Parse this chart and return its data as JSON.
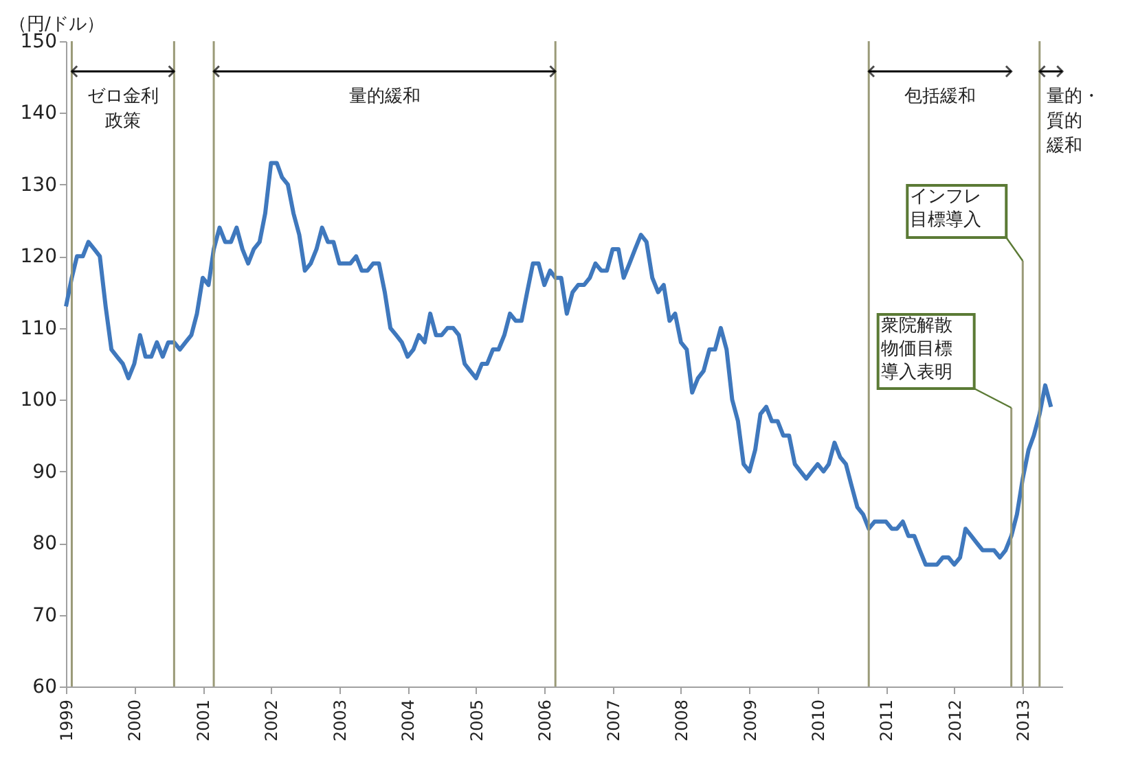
{
  "chart_data": {
    "type": "line",
    "ylabel": "（円/ドル）",
    "x": [
      "1999-01",
      "1999-02",
      "1999-03",
      "1999-04",
      "1999-05",
      "1999-06",
      "1999-07",
      "1999-08",
      "1999-09",
      "1999-10",
      "1999-11",
      "1999-12",
      "2000-01",
      "2000-02",
      "2000-03",
      "2000-04",
      "2000-05",
      "2000-06",
      "2000-07",
      "2000-08",
      "2000-09",
      "2000-10",
      "2000-11",
      "2000-12",
      "2001-01",
      "2001-02",
      "2001-03",
      "2001-04",
      "2001-05",
      "2001-06",
      "2001-07",
      "2001-08",
      "2001-09",
      "2001-10",
      "2001-11",
      "2001-12",
      "2002-01",
      "2002-02",
      "2002-03",
      "2002-04",
      "2002-05",
      "2002-06",
      "2002-07",
      "2002-08",
      "2002-09",
      "2002-10",
      "2002-11",
      "2002-12",
      "2003-01",
      "2003-02",
      "2003-03",
      "2003-04",
      "2003-05",
      "2003-06",
      "2003-07",
      "2003-08",
      "2003-09",
      "2003-10",
      "2003-11",
      "2003-12",
      "2004-01",
      "2004-02",
      "2004-03",
      "2004-04",
      "2004-05",
      "2004-06",
      "2004-07",
      "2004-08",
      "2004-09",
      "2004-10",
      "2004-11",
      "2004-12",
      "2005-01",
      "2005-02",
      "2005-03",
      "2005-04",
      "2005-05",
      "2005-06",
      "2005-07",
      "2005-08",
      "2005-09",
      "2005-10",
      "2005-11",
      "2005-12",
      "2006-01",
      "2006-02",
      "2006-03",
      "2006-04",
      "2006-05",
      "2006-06",
      "2006-07",
      "2006-08",
      "2006-09",
      "2006-10",
      "2006-11",
      "2006-12",
      "2007-01",
      "2007-02",
      "2007-03",
      "2007-04",
      "2007-05",
      "2007-06",
      "2007-07",
      "2007-08",
      "2007-09",
      "2007-10",
      "2007-11",
      "2007-12",
      "2008-01",
      "2008-02",
      "2008-03",
      "2008-04",
      "2008-05",
      "2008-06",
      "2008-07",
      "2008-08",
      "2008-09",
      "2008-10",
      "2008-11",
      "2008-12",
      "2009-01",
      "2009-02",
      "2009-03",
      "2009-04",
      "2009-05",
      "2009-06",
      "2009-07",
      "2009-08",
      "2009-09",
      "2009-10",
      "2009-11",
      "2009-12",
      "2010-01",
      "2010-02",
      "2010-03",
      "2010-04",
      "2010-05",
      "2010-06",
      "2010-07",
      "2010-08",
      "2010-09",
      "2010-10",
      "2010-11",
      "2010-12",
      "2011-01",
      "2011-02",
      "2011-03",
      "2011-04",
      "2011-05",
      "2011-06",
      "2011-07",
      "2011-08",
      "2011-09",
      "2011-10",
      "2011-11",
      "2011-12",
      "2012-01",
      "2012-02",
      "2012-03",
      "2012-04",
      "2012-05",
      "2012-06",
      "2012-07",
      "2012-08",
      "2012-09",
      "2012-10",
      "2012-11",
      "2012-12",
      "2013-01",
      "2013-02",
      "2013-03",
      "2013-04",
      "2013-05",
      "2013-06"
    ],
    "series": [
      {
        "color": "#3f78bd",
        "values": [
          113,
          117,
          120,
          120,
          122,
          121,
          120,
          113,
          107,
          106,
          105,
          103,
          105,
          109,
          106,
          106,
          108,
          106,
          108,
          108,
          107,
          108,
          109,
          112,
          117,
          116,
          121,
          124,
          122,
          122,
          124,
          121,
          119,
          121,
          122,
          126,
          133,
          133,
          131,
          130,
          126,
          123,
          118,
          119,
          121,
          124,
          122,
          122,
          119,
          119,
          119,
          120,
          118,
          118,
          119,
          119,
          115,
          110,
          109,
          108,
          106,
          107,
          109,
          108,
          112,
          109,
          109,
          110,
          110,
          109,
          105,
          104,
          103,
          105,
          105,
          107,
          107,
          109,
          112,
          111,
          111,
          115,
          119,
          119,
          116,
          118,
          117,
          117,
          112,
          115,
          116,
          116,
          117,
          119,
          118,
          118,
          121,
          121,
          117,
          119,
          121,
          123,
          122,
          117,
          115,
          116,
          111,
          112,
          108,
          107,
          101,
          103,
          104,
          107,
          107,
          110,
          107,
          100,
          97,
          91,
          90,
          93,
          98,
          99,
          97,
          97,
          95,
          95,
          91,
          90,
          89,
          90,
          91,
          90,
          91,
          94,
          92,
          91,
          88,
          85,
          84,
          82,
          83,
          83,
          83,
          82,
          82,
          83,
          81,
          81,
          79,
          77,
          77,
          77,
          78,
          78,
          77,
          78,
          82,
          81,
          80,
          79,
          79,
          79,
          78,
          79,
          81,
          84,
          89,
          93,
          95,
          98,
          102,
          99
        ]
      }
    ],
    "xlim": [
      "1999-01",
      "2013-08"
    ],
    "xticks": [
      "1999",
      "2000",
      "2001",
      "2002",
      "2003",
      "2004",
      "2005",
      "2006",
      "2007",
      "2008",
      "2009",
      "2010",
      "2011",
      "2012",
      "2013"
    ],
    "ylim": [
      60,
      150
    ],
    "yticks": [
      60,
      70,
      80,
      90,
      100,
      110,
      120,
      130,
      140,
      150
    ],
    "grid": false,
    "ref_lines": [
      {
        "axis": "x",
        "value": "1999-02",
        "color": "#9a9a78"
      },
      {
        "axis": "x",
        "value": "2000-08",
        "color": "#9a9a78"
      },
      {
        "axis": "x",
        "value": "2001-03",
        "color": "#9a9a78"
      },
      {
        "axis": "x",
        "value": "2006-03",
        "color": "#9a9a78"
      },
      {
        "axis": "x",
        "value": "2010-10",
        "color": "#9a9a78"
      },
      {
        "axis": "x",
        "value": "2012-11",
        "color": "#9a9a78",
        "label": "衆院解散物価目標導入表明"
      },
      {
        "axis": "x",
        "value": "2013-01",
        "color": "#9a9a78",
        "label": "インフレ目標導入"
      },
      {
        "axis": "x",
        "value": "2013-04",
        "color": "#9a9a78"
      }
    ],
    "annotations": [
      "ゼロ金利政策",
      "量的緩和",
      "包括緩和",
      "量的・質的緩和"
    ]
  }
}
